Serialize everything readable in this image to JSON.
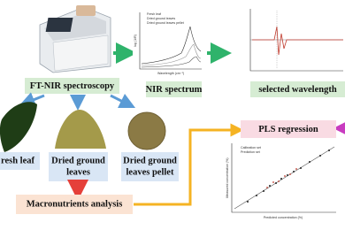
{
  "instrument": {
    "label": "FT-NIR spectroscopy"
  },
  "spectrum": {
    "label": "NIR spectrum",
    "legend": [
      "Fresh leaf",
      "Dried ground leaves",
      "Dried ground leaves pellet"
    ],
    "y_axis": "log (1/R)",
    "x_axis": "Wavelength (cm⁻¹)"
  },
  "wavelength": {
    "label": "selected wavelength"
  },
  "samples": [
    {
      "lines": [
        "resh leaf"
      ]
    },
    {
      "lines": [
        "Dried ground",
        "leaves"
      ]
    },
    {
      "lines": [
        "Dried ground",
        "leaves pellet"
      ]
    }
  ],
  "analysis": {
    "label": "Macronutrients analysis"
  },
  "regression": {
    "label": "PLS regression",
    "legend": [
      "Calibration set",
      "Prediction set"
    ],
    "y_axis": "Measured concentration (%)",
    "x_axis": "Predicted concentration (%)"
  }
}
